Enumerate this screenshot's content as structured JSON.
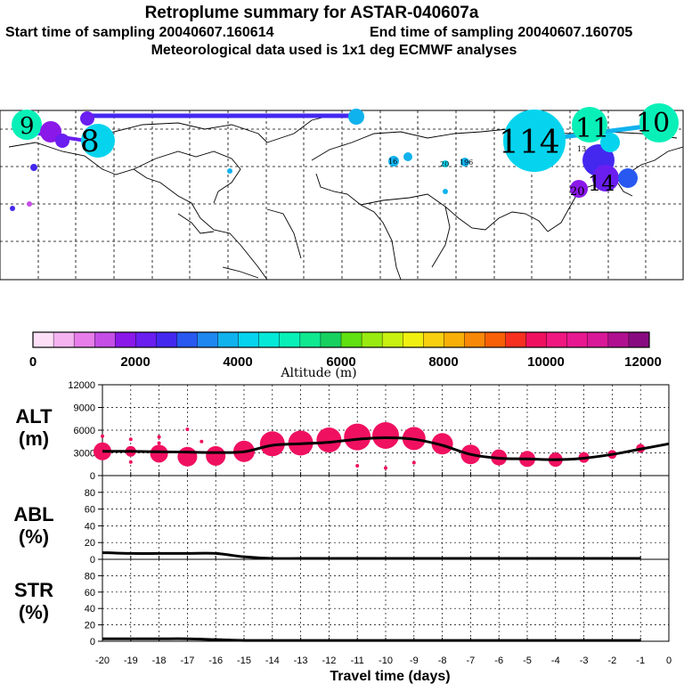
{
  "header": {
    "title": "Retroplume summary for ASTAR-040607a",
    "start_label": "Start time of sampling 20040607.160614",
    "end_label": "End time of sampling 20040607.160705",
    "met_label": "Meteorological data used is 1x1 deg ECMWF analyses"
  },
  "map": {
    "labels": [
      {
        "text": "9"
      },
      {
        "text": "8"
      },
      {
        "text": "114"
      },
      {
        "text": "11"
      },
      {
        "text": "10"
      },
      {
        "text": "16"
      },
      {
        "text": "196"
      },
      {
        "text": "20"
      },
      {
        "text": "13"
      },
      {
        "text": "14"
      },
      {
        "text": "20"
      }
    ]
  },
  "colorbar": {
    "tick_labels": [
      "0",
      "2000",
      "4000",
      "6000",
      "8000",
      "10000",
      "12000"
    ],
    "title": "Altitude (m)",
    "colors": [
      "#fde0f8",
      "#f5b3f0",
      "#e77de9",
      "#c44ee6",
      "#8a18e8",
      "#6a1ef0",
      "#4428f0",
      "#2858f0",
      "#1e88f0",
      "#10b2ee",
      "#06d4ee",
      "#05e8d8",
      "#08f0b8",
      "#10e890",
      "#18d060",
      "#60e010",
      "#98ea10",
      "#c8f010",
      "#f0f010",
      "#f8d010",
      "#f8b008",
      "#f88808",
      "#f86008",
      "#f83020",
      "#f01060",
      "#f01880",
      "#e81890",
      "#d81898",
      "#b01090",
      "#880c80"
    ]
  },
  "chart_data": [
    {
      "type": "line",
      "name": "ALT",
      "ylabel_top": "ALT",
      "ylabel_unit": "(m)",
      "ylim": [
        0,
        12000
      ],
      "yticks": [
        0,
        3000,
        6000,
        9000,
        12000
      ],
      "x": [
        -20,
        -19,
        -18,
        -17,
        -16,
        -15,
        -14,
        -13,
        -12,
        -11,
        -10,
        -9,
        -8,
        -7,
        -6,
        -5,
        -4,
        -3,
        -2,
        -1,
        0
      ],
      "series": [
        {
          "name": "mean altitude",
          "values": [
            3200,
            3200,
            3150,
            3100,
            3050,
            3150,
            4000,
            4200,
            4400,
            4800,
            5000,
            4800,
            4000,
            2800,
            2300,
            2200,
            2100,
            2300,
            2800,
            3500,
            4200
          ]
        }
      ],
      "bubbles": [
        {
          "x": -20,
          "y": 3200,
          "s": 10
        },
        {
          "x": -19,
          "y": 3200,
          "s": 6
        },
        {
          "x": -18,
          "y": 2900,
          "s": 10
        },
        {
          "x": -17,
          "y": 2500,
          "s": 11
        },
        {
          "x": -16,
          "y": 2600,
          "s": 11
        },
        {
          "x": -15,
          "y": 3200,
          "s": 12
        },
        {
          "x": -14,
          "y": 4200,
          "s": 14
        },
        {
          "x": -13,
          "y": 4300,
          "s": 14
        },
        {
          "x": -12,
          "y": 4700,
          "s": 14
        },
        {
          "x": -11,
          "y": 5100,
          "s": 15
        },
        {
          "x": -10,
          "y": 5300,
          "s": 15
        },
        {
          "x": -9,
          "y": 4900,
          "s": 13
        },
        {
          "x": -8,
          "y": 4200,
          "s": 12
        },
        {
          "x": -7,
          "y": 2800,
          "s": 11
        },
        {
          "x": -6,
          "y": 2400,
          "s": 9
        },
        {
          "x": -5,
          "y": 2200,
          "s": 9
        },
        {
          "x": -4,
          "y": 2100,
          "s": 8
        },
        {
          "x": -3,
          "y": 2400,
          "s": 6
        },
        {
          "x": -2,
          "y": 2800,
          "s": 5
        },
        {
          "x": -1,
          "y": 3600,
          "s": 5
        }
      ],
      "small_dots": [
        {
          "x": -20,
          "y": 5200
        },
        {
          "x": -19,
          "y": 1800
        },
        {
          "x": -19,
          "y": 4800
        },
        {
          "x": -18,
          "y": 5100
        },
        {
          "x": -18,
          "y": 4300
        },
        {
          "x": -17,
          "y": 6100
        },
        {
          "x": -16.5,
          "y": 4500
        },
        {
          "x": -11,
          "y": 1300
        },
        {
          "x": -10,
          "y": 1000
        },
        {
          "x": -9,
          "y": 1700
        }
      ]
    },
    {
      "type": "line",
      "name": "ABL",
      "ylabel_top": "ABL",
      "ylabel_unit": "(%)",
      "ylim": [
        0,
        100
      ],
      "yticks": [
        0,
        20,
        40,
        60,
        80
      ],
      "x": [
        -20,
        -19,
        -18,
        -17,
        -16,
        -15,
        -14,
        -13,
        -12,
        -11,
        -10,
        -9,
        -8,
        -7,
        -6,
        -5,
        -4,
        -3,
        -2,
        -1
      ],
      "series": [
        {
          "name": "ABL fraction",
          "values": [
            8,
            7,
            7,
            7,
            7,
            3,
            1,
            1,
            1,
            1,
            1,
            1,
            1,
            1,
            1,
            1,
            1,
            1,
            1,
            1
          ]
        }
      ]
    },
    {
      "type": "line",
      "name": "STR",
      "ylabel_top": "STR",
      "ylabel_unit": "(%)",
      "ylim": [
        0,
        100
      ],
      "yticks": [
        0,
        20,
        40,
        60,
        80
      ],
      "x": [
        -20,
        -19,
        -18,
        -17,
        -16,
        -15,
        -14,
        -13,
        -12,
        -11,
        -10,
        -9,
        -8,
        -7,
        -6,
        -5,
        -4,
        -3,
        -2,
        -1
      ],
      "series": [
        {
          "name": "STR fraction",
          "values": [
            3,
            3,
            3,
            3,
            2,
            1,
            1,
            1,
            1,
            1,
            1,
            1,
            1,
            1,
            1,
            1,
            1,
            1,
            1,
            1
          ]
        }
      ]
    }
  ],
  "xaxis": {
    "tick_labels": [
      "-20",
      "-19",
      "-18",
      "-17",
      "-16",
      "-15",
      "-14",
      "-13",
      "-12",
      "-11",
      "-10",
      "-9",
      "-8",
      "-7",
      "-6",
      "-5",
      "-4",
      "-3",
      "-2",
      "-1",
      "0"
    ],
    "label": "Travel time (days)"
  }
}
